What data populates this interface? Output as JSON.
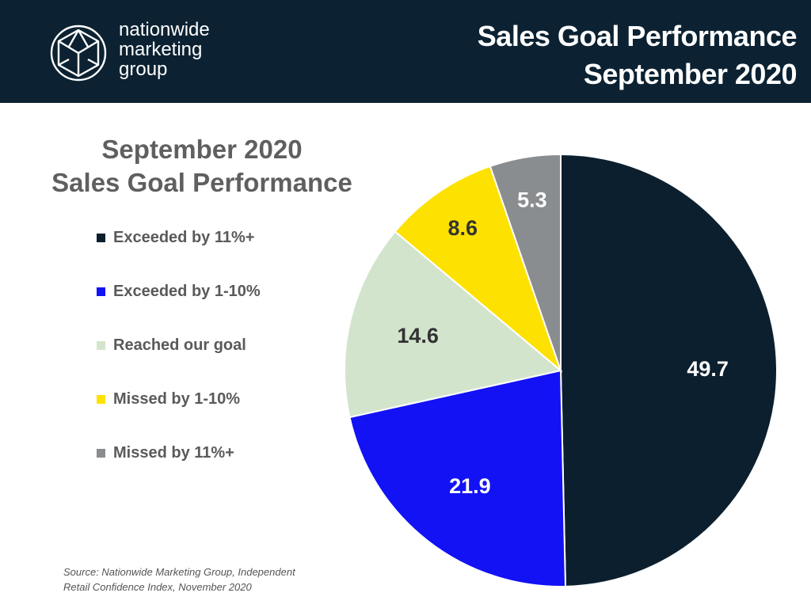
{
  "header": {
    "brand_lines": [
      "nationwide",
      "marketing",
      "group"
    ],
    "title_line1": "Sales Goal Performance",
    "title_line2": "September 2020"
  },
  "chart_title": {
    "line1": "September 2020",
    "line2": "Sales Goal Performance"
  },
  "source": {
    "line1": "Source: Nationwide Marketing Group, Independent",
    "line2": "Retail Confidence Index, November 2020"
  },
  "colors": {
    "header_bg": "#0c2232",
    "exceeded_11": "#0c1f2e",
    "exceeded_1_10": "#1212f5",
    "reached": "#d3e4cd",
    "missed_1_10": "#fde101",
    "missed_11": "#8a8d8f"
  },
  "chart_data": {
    "type": "pie",
    "title": "September 2020 Sales Goal Performance",
    "start_angle": "12 o'clock, clockwise",
    "legend_position": "left",
    "categories": [
      "Exceeded by 11%+",
      "Exceeded by 1-10%",
      "Reached our goal",
      "Missed by 1-10%",
      "Missed by 11%+"
    ],
    "values": [
      49.7,
      21.9,
      14.6,
      8.6,
      5.3
    ],
    "labels": [
      "49.7",
      "21.9",
      "14.6",
      "8.6",
      "5.3"
    ],
    "colors": [
      "#0c1f2e",
      "#1212f5",
      "#d3e4cd",
      "#fde101",
      "#8a8d8f"
    ],
    "label_colors": [
      "#ffffff",
      "#ffffff",
      "#333333",
      "#333333",
      "#ffffff"
    ]
  }
}
